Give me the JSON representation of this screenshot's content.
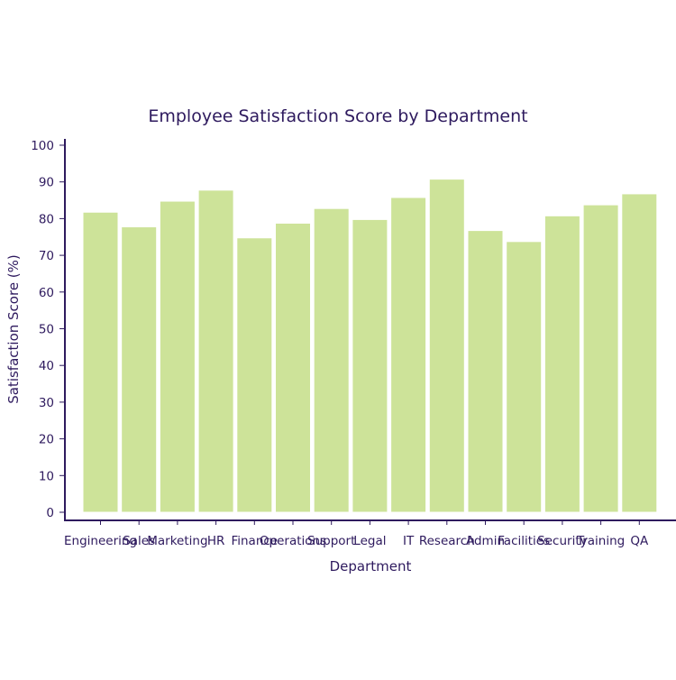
{
  "chart_data": {
    "type": "bar",
    "title": "Employee Satisfaction Score by Department",
    "xlabel": "Department",
    "ylabel": "Satisfaction Score (%)",
    "categories": [
      "Engineering",
      "Sales",
      "Marketing",
      "HR",
      "Finance",
      "Operations",
      "Support",
      "Legal",
      "IT",
      "Research",
      "Admin",
      "Facilities",
      "Security",
      "Training",
      "QA"
    ],
    "values": [
      82,
      78,
      85,
      88,
      75,
      79,
      83,
      80,
      86,
      91,
      77,
      74,
      81,
      84,
      87
    ],
    "ylim": [
      0,
      100
    ],
    "yticks": [
      0,
      10,
      20,
      30,
      40,
      50,
      60,
      70,
      80,
      90,
      100
    ],
    "grid": false,
    "legend": "none",
    "colors": {
      "bar": "#cde399",
      "text": "#2e1a5e",
      "axis": "#2e1a5e"
    }
  }
}
